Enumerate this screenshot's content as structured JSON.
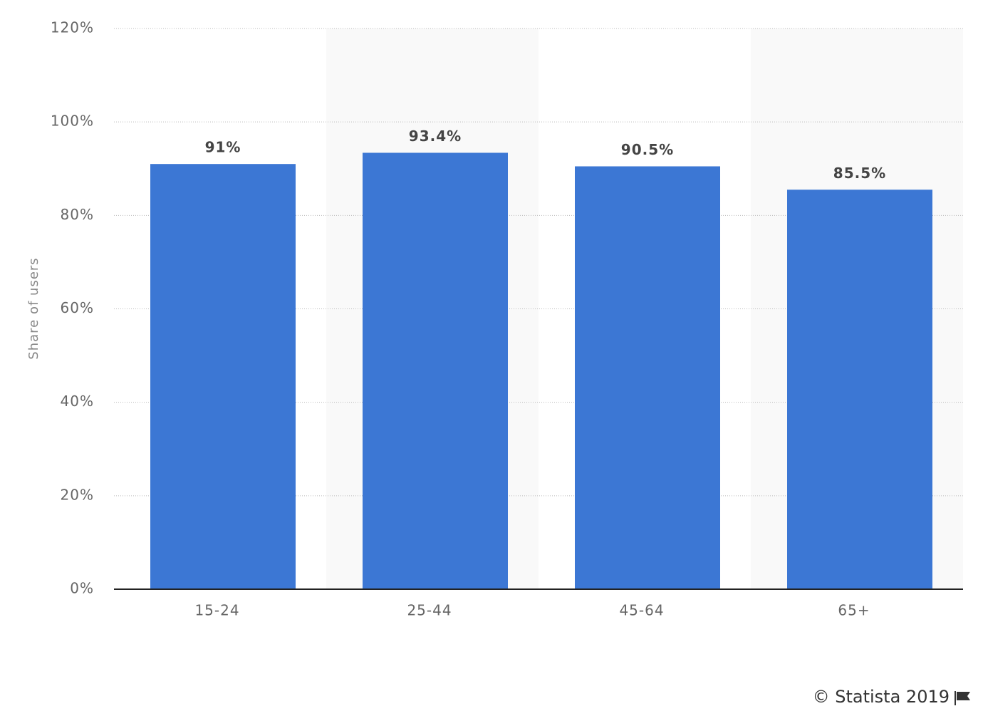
{
  "chart_data": {
    "type": "bar",
    "y_label": "Share of users",
    "categories": [
      "15-24",
      "25-44",
      "45-64",
      "65+"
    ],
    "values": [
      91,
      93.4,
      90.5,
      85.5
    ],
    "value_labels": [
      "91%",
      "93.4%",
      "90.5%",
      "85.5%"
    ],
    "color": "#3c77d4",
    "ylim": [
      0,
      120
    ],
    "yticks": [
      {
        "value": 0,
        "label": "0%"
      },
      {
        "value": 20,
        "label": "20%"
      },
      {
        "value": 40,
        "label": "40%"
      },
      {
        "value": 60,
        "label": "60%"
      },
      {
        "value": 80,
        "label": "80%"
      },
      {
        "value": 100,
        "label": "100%"
      },
      {
        "value": 120,
        "label": "120%"
      }
    ],
    "grid": true,
    "credit": "© Statista 2019"
  }
}
